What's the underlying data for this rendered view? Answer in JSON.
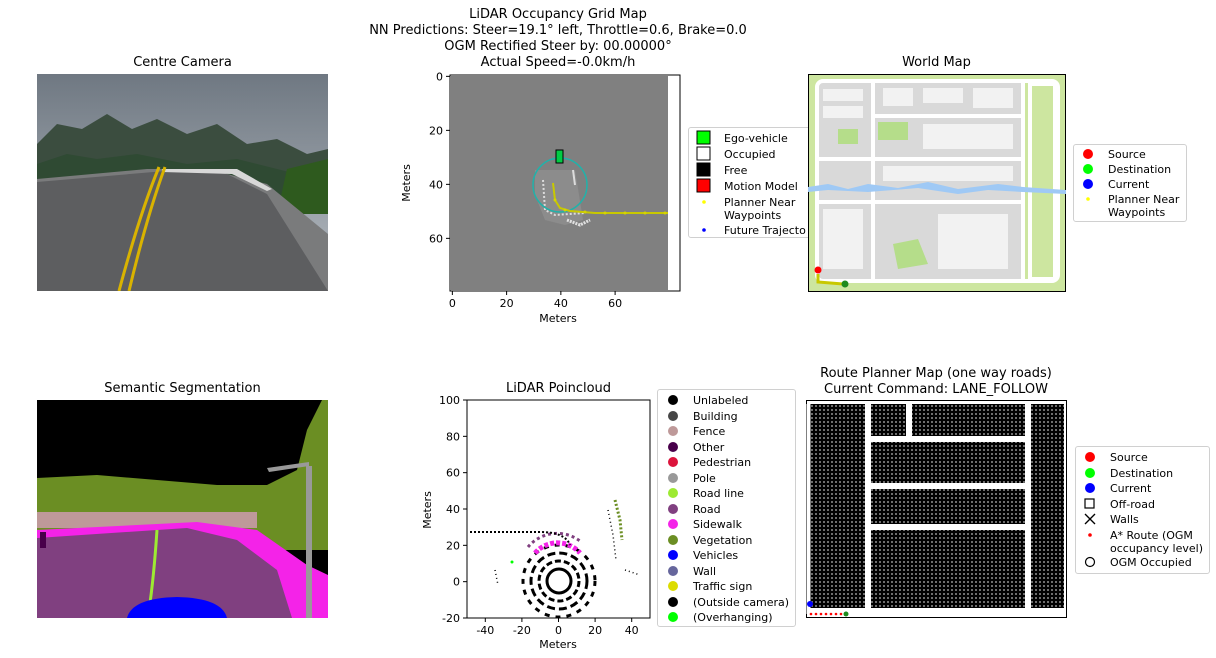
{
  "suptitle": {
    "line1": "LiDAR Occupancy Grid Map",
    "line2": "NN Predictions: Steer=19.1° left, Throttle=0.6, Brake=0.0",
    "line3": "OGM Rectified Steer by: 00.00000°",
    "line4": "Actual Speed=-0.0km/h"
  },
  "centre_camera": {
    "title": "Centre Camera"
  },
  "world_map": {
    "title": "World Map",
    "legend": [
      {
        "label": "Source",
        "color": "#ff0000",
        "marker": "circle"
      },
      {
        "label": "Destination",
        "color": "#00ff00",
        "marker": "circle"
      },
      {
        "label": "Current",
        "color": "#0000ff",
        "marker": "circle"
      },
      {
        "label": "Planner Near\nWaypoints",
        "color": "#ffff00",
        "marker": "dot"
      }
    ]
  },
  "ogm": {
    "xlabel": "Meters",
    "ylabel": "Meters",
    "xticks": [
      0,
      20,
      40,
      60
    ],
    "yticks": [
      0,
      20,
      40,
      60
    ],
    "xlim": [
      -0.5,
      79.5
    ],
    "ylim": [
      79.5,
      -0.5
    ],
    "legend": [
      {
        "label": "Ego-vehicle",
        "color": "#00ff00",
        "marker": "square"
      },
      {
        "label": "Occupied",
        "color": "#ffffff",
        "marker": "square"
      },
      {
        "label": "Free",
        "color": "#000000",
        "marker": "square"
      },
      {
        "label": "Motion Model",
        "color": "#ff0000",
        "marker": "square"
      },
      {
        "label": "Planner Near\nWaypoints",
        "color": "#ffff00",
        "marker": "dot"
      },
      {
        "label": "Future Trajecto",
        "color": "#0000ff",
        "marker": "dot"
      }
    ]
  },
  "semantic": {
    "title": "Semantic Segmentation"
  },
  "lidar": {
    "title": "LiDAR Poincloud",
    "xlabel": "Meters",
    "ylabel": "Meters",
    "xticks": [
      -40,
      -20,
      0,
      20,
      40
    ],
    "yticks": [
      -20,
      0,
      20,
      40,
      60,
      80,
      100
    ],
    "xlim": [
      -50,
      50
    ],
    "ylim": [
      -20,
      100
    ],
    "legend": [
      {
        "label": "Unlabeled",
        "color": "#000000"
      },
      {
        "label": "Building",
        "color": "#464646"
      },
      {
        "label": "Fence",
        "color": "#be9999"
      },
      {
        "label": "Other",
        "color": "#48004a"
      },
      {
        "label": "Pedestrian",
        "color": "#dc143c"
      },
      {
        "label": "Pole",
        "color": "#999999"
      },
      {
        "label": "Road line",
        "color": "#9dea32"
      },
      {
        "label": "Road",
        "color": "#804080"
      },
      {
        "label": "Sidewalk",
        "color": "#f423e8"
      },
      {
        "label": "Vegetation",
        "color": "#6b8e23"
      },
      {
        "label": "Vehicles",
        "color": "#0000ff"
      },
      {
        "label": "Wall",
        "color": "#66669c"
      },
      {
        "label": "Traffic sign",
        "color": "#dcdc00"
      },
      {
        "label": "(Outside camera)",
        "color": "#000000"
      },
      {
        "label": "(Overhanging)",
        "color": "#00ff00"
      }
    ]
  },
  "route_map": {
    "title1": "Route Planner Map (one way roads)",
    "title2": "Current Command: LANE_FOLLOW",
    "legend": [
      {
        "label": "Source",
        "color": "#ff0000",
        "marker": "circle"
      },
      {
        "label": "Destination",
        "color": "#00ff00",
        "marker": "circle"
      },
      {
        "label": "Current",
        "color": "#0000ff",
        "marker": "circle"
      },
      {
        "label": "Off-road",
        "color": "#000000",
        "marker": "square-open"
      },
      {
        "label": "Walls",
        "color": "#000000",
        "marker": "x"
      },
      {
        "label": "A* Route (OGM\noccupancy level)",
        "color": "#ff0000",
        "marker": "dot"
      },
      {
        "label": "OGM Occupied",
        "color": "#000000",
        "marker": "circle-open"
      }
    ]
  },
  "chart_data": [
    {
      "type": "heatmap",
      "title": "LiDAR Occupancy Grid Map",
      "xlabel": "Meters",
      "ylabel": "Meters",
      "xlim": [
        -0.5,
        79.5
      ],
      "ylim": [
        79.5,
        -0.5
      ],
      "ego_vehicle": {
        "x": 39.5,
        "y": 30
      },
      "planner_near_waypoints": [
        [
          38,
          43
        ],
        [
          40,
          48
        ],
        [
          44,
          50
        ],
        [
          50,
          51
        ],
        [
          60,
          51
        ],
        [
          70,
          51
        ],
        [
          80,
          51
        ]
      ]
    },
    {
      "type": "scatter",
      "title": "LiDAR Poincloud",
      "xlabel": "Meters",
      "ylabel": "Meters",
      "xlim": [
        -50,
        50
      ],
      "ylim": [
        -20,
        100
      ]
    }
  ]
}
